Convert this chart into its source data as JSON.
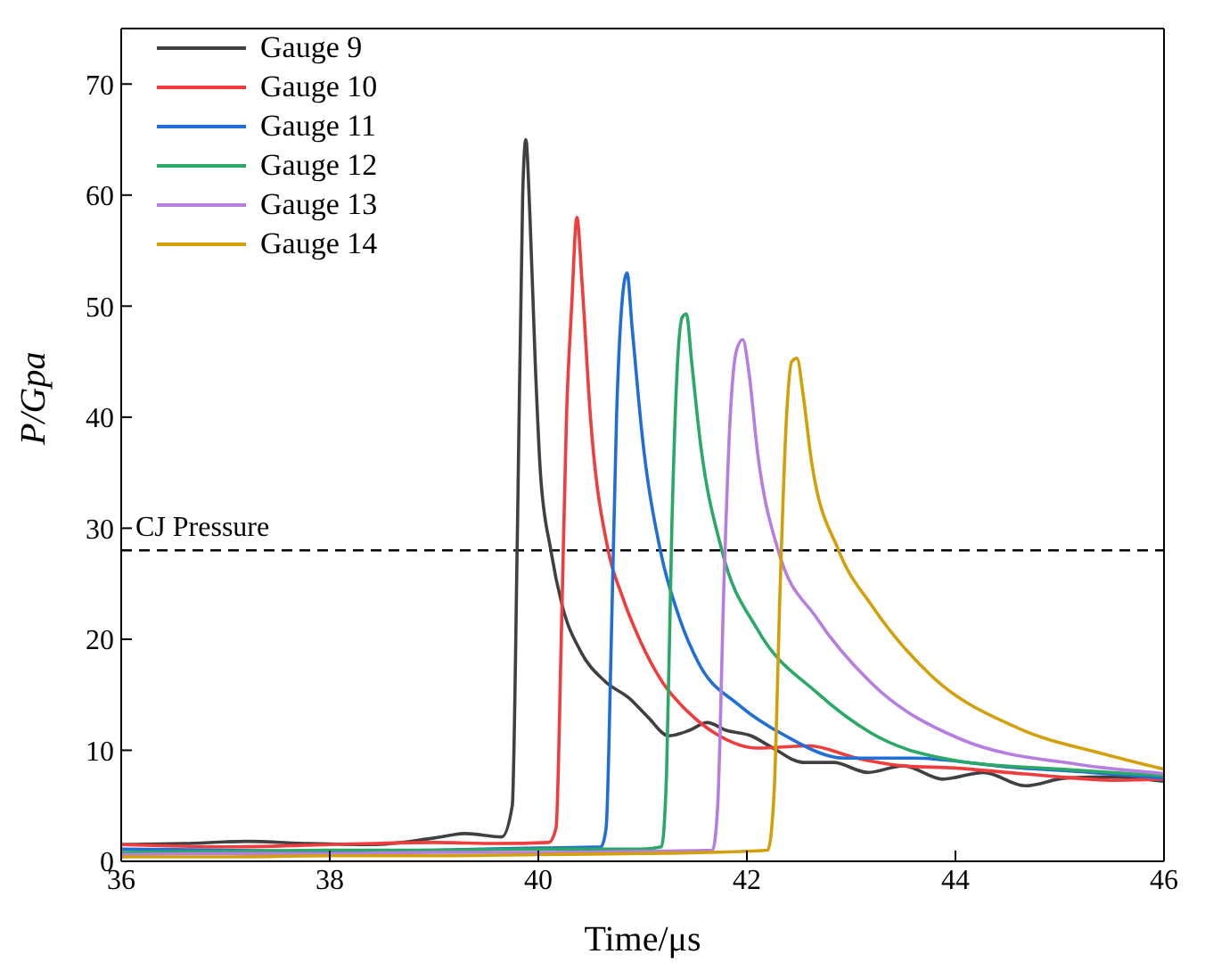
{
  "chart_data": {
    "type": "line",
    "xlabel": "Time/μs",
    "ylabel": "P/Gpa",
    "xlim": [
      36,
      46
    ],
    "xticks": [
      36,
      38,
      40,
      42,
      44,
      46
    ],
    "ylim": [
      0,
      75
    ],
    "yticks": [
      0,
      10,
      20,
      30,
      40,
      50,
      60,
      70
    ],
    "legend": "top left",
    "marker": "none",
    "line_style": "solid",
    "ref_lines": [
      {
        "axis": "y",
        "value": 28,
        "label": "CJ Pressure",
        "color": "#000000",
        "line_style": "dashed"
      }
    ],
    "series": [
      {
        "name": "Gauge 9",
        "color": "#404040",
        "x": [
          36,
          36.6,
          37.2,
          37.8,
          38.4,
          39,
          39.3,
          39.65,
          39.75,
          39.8,
          39.85,
          39.88,
          39.92,
          39.97,
          40.02,
          40.12,
          40.23,
          40.4,
          40.64,
          40.87,
          41.05,
          41.25,
          41.45,
          41.62,
          41.8,
          42.04,
          42.25,
          42.54,
          42.83,
          43.16,
          43.5,
          43.88,
          44.27,
          44.67,
          45.06,
          45.5,
          46
        ],
        "values": [
          1.5,
          1.6,
          1.8,
          1.6,
          1.5,
          2.1,
          2.5,
          2.2,
          5,
          30,
          60,
          65,
          58,
          45,
          35,
          28,
          23,
          19,
          16.2,
          14.7,
          13,
          11.3,
          11.8,
          12.5,
          11.8,
          11.3,
          10.2,
          8.9,
          8.9,
          8,
          8.6,
          7.4,
          8,
          6.8,
          7.5,
          7.6,
          7.2
        ]
      },
      {
        "name": "Gauge 10",
        "color": "#f03c3c",
        "x": [
          36,
          37,
          38,
          39,
          39.6,
          40.1,
          40.17,
          40.22,
          40.27,
          40.32,
          40.37,
          40.42,
          40.5,
          40.67,
          40.8,
          40.98,
          41.2,
          41.42,
          41.7,
          42.1,
          42.6,
          43.05,
          43.5,
          44,
          44.5,
          45,
          45.5,
          46
        ],
        "values": [
          1.5,
          1.3,
          1.5,
          1.7,
          1.6,
          1.7,
          3,
          20,
          40,
          50,
          58,
          52,
          40,
          28,
          24,
          19.8,
          16,
          13.6,
          11.5,
          10.2,
          10.4,
          9.3,
          8.6,
          8.4,
          8,
          7.6,
          7.3,
          7.4
        ]
      },
      {
        "name": "Gauge 11",
        "color": "#1f6fd6",
        "x": [
          36,
          37,
          38,
          39,
          40,
          40.6,
          40.65,
          40.7,
          40.75,
          40.8,
          40.85,
          40.9,
          41,
          41.17,
          41.35,
          41.54,
          41.92,
          42.37,
          42.93,
          43.6,
          44.5,
          45.3,
          46
        ],
        "values": [
          1.1,
          1,
          0.9,
          1,
          1.2,
          1.3,
          3,
          20,
          40,
          50,
          53,
          48,
          38,
          28,
          22,
          17.8,
          14.1,
          11.3,
          9.3,
          9.3,
          8.5,
          8,
          7.5
        ]
      },
      {
        "name": "Gauge 12",
        "color": "#2aa866",
        "x": [
          36,
          37,
          38,
          39,
          40,
          41,
          41.18,
          41.23,
          41.28,
          41.33,
          41.38,
          41.42,
          41.47,
          41.55,
          41.76,
          42.1,
          42.67,
          43.2,
          44.05,
          45,
          46
        ],
        "values": [
          0.8,
          0.9,
          1,
          1,
          1.1,
          1.1,
          1.3,
          8,
          30,
          44,
          49,
          49.3,
          45,
          38,
          28,
          20.9,
          15.2,
          11.5,
          9,
          8.3,
          7.7
        ]
      },
      {
        "name": "Gauge 13",
        "color": "#b57ee0",
        "x": [
          36,
          37,
          38,
          39,
          40,
          41,
          41.67,
          41.72,
          41.78,
          41.84,
          41.9,
          41.96,
          42.02,
          42.1,
          42.3,
          42.67,
          43.2,
          44.05,
          45.2,
          46
        ],
        "values": [
          0.6,
          0.7,
          0.7,
          0.8,
          0.8,
          0.9,
          1,
          5,
          25,
          40,
          46,
          47,
          44,
          37,
          28,
          21.9,
          16,
          11,
          8.7,
          7.9
        ]
      },
      {
        "name": "Gauge 14",
        "color": "#d4a00a",
        "x": [
          36,
          37,
          38,
          39,
          40,
          41,
          42,
          42.2,
          42.26,
          42.32,
          42.38,
          42.43,
          42.48,
          42.54,
          42.62,
          42.88,
          43.2,
          43.77,
          44.6,
          45.45,
          46
        ],
        "values": [
          0.4,
          0.4,
          0.5,
          0.5,
          0.6,
          0.7,
          0.9,
          1,
          6,
          25,
          40,
          45,
          45.3,
          42,
          36,
          28,
          23,
          16.7,
          12,
          9.6,
          8.3
        ]
      }
    ]
  }
}
